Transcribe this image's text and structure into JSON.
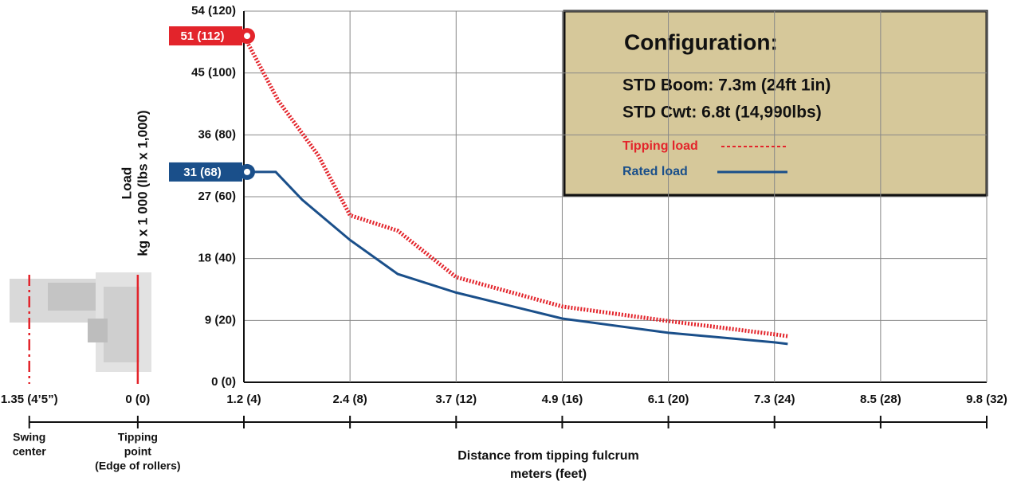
{
  "chart_data": {
    "type": "line",
    "title": "Configuration:",
    "subtitle": [
      "STD Boom: 7.3m (24ft 1in)",
      "STD Cwt: 6.8t (14,990lbs)"
    ],
    "y_label": [
      "Load",
      "kg x 1 000 (lbs x 1,000)"
    ],
    "x_label": [
      "Distance from tipping fulcrum",
      "meters (feet)"
    ],
    "xlim": [
      -4.42,
      32
    ],
    "xticks": [
      {
        "value": -4.42,
        "label": "1.35 (4’5”)"
      },
      {
        "value": 0,
        "label": "0 (0)"
      },
      {
        "value": 4,
        "label": "1.2 (4)"
      },
      {
        "value": 8,
        "label": "2.4 (8)"
      },
      {
        "value": 12,
        "label": "3.7 (12)"
      },
      {
        "value": 16,
        "label": "4.9 (16)"
      },
      {
        "value": 20,
        "label": "6.1 (20)"
      },
      {
        "value": 24,
        "label": "7.3 (24)"
      },
      {
        "value": 28,
        "label": "8.5 (28)"
      },
      {
        "value": 32,
        "label": "9.8 (32)"
      }
    ],
    "reference_labels": [
      [
        "Swing",
        "center"
      ],
      [
        "Tipping",
        "point",
        "(Edge of rollers)"
      ]
    ],
    "ylim": [
      0,
      120
    ],
    "yticks": [
      {
        "value": 0,
        "label": "0 (0)"
      },
      {
        "value": 20,
        "label": "9 (20)"
      },
      {
        "value": 40,
        "label": "18 (40)"
      },
      {
        "value": 60,
        "label": "27 (60)"
      },
      {
        "value": 80,
        "label": "36 (80)"
      },
      {
        "value": 100,
        "label": "45 (100)"
      },
      {
        "value": 120,
        "label": "54 (120)"
      }
    ],
    "grid": true,
    "series": [
      {
        "name": "Tipping load",
        "color": "#e3242b",
        "style": "dotted",
        "x": [
          4,
          5.3,
          6.8,
          8,
          9.8,
          12,
          16,
          20,
          24,
          24.5
        ],
        "values": [
          112,
          91,
          73.4,
          54,
          49,
          34,
          24.5,
          19.8,
          15.5,
          14.9
        ]
      },
      {
        "name": "Rated load",
        "color": "#1a4f8a",
        "style": "solid",
        "x": [
          4,
          5.2,
          6.2,
          8,
          9.8,
          12,
          16,
          20,
          24,
          24.5
        ],
        "values": [
          68,
          68,
          59,
          46,
          35,
          29,
          20.6,
          16,
          12.9,
          12.4
        ]
      }
    ],
    "annotations": [
      {
        "label": "51 (112)",
        "value": 112,
        "color": "#e3242b"
      },
      {
        "label": "31 (68)",
        "value": 68,
        "color": "#1a4f8a"
      }
    ]
  }
}
